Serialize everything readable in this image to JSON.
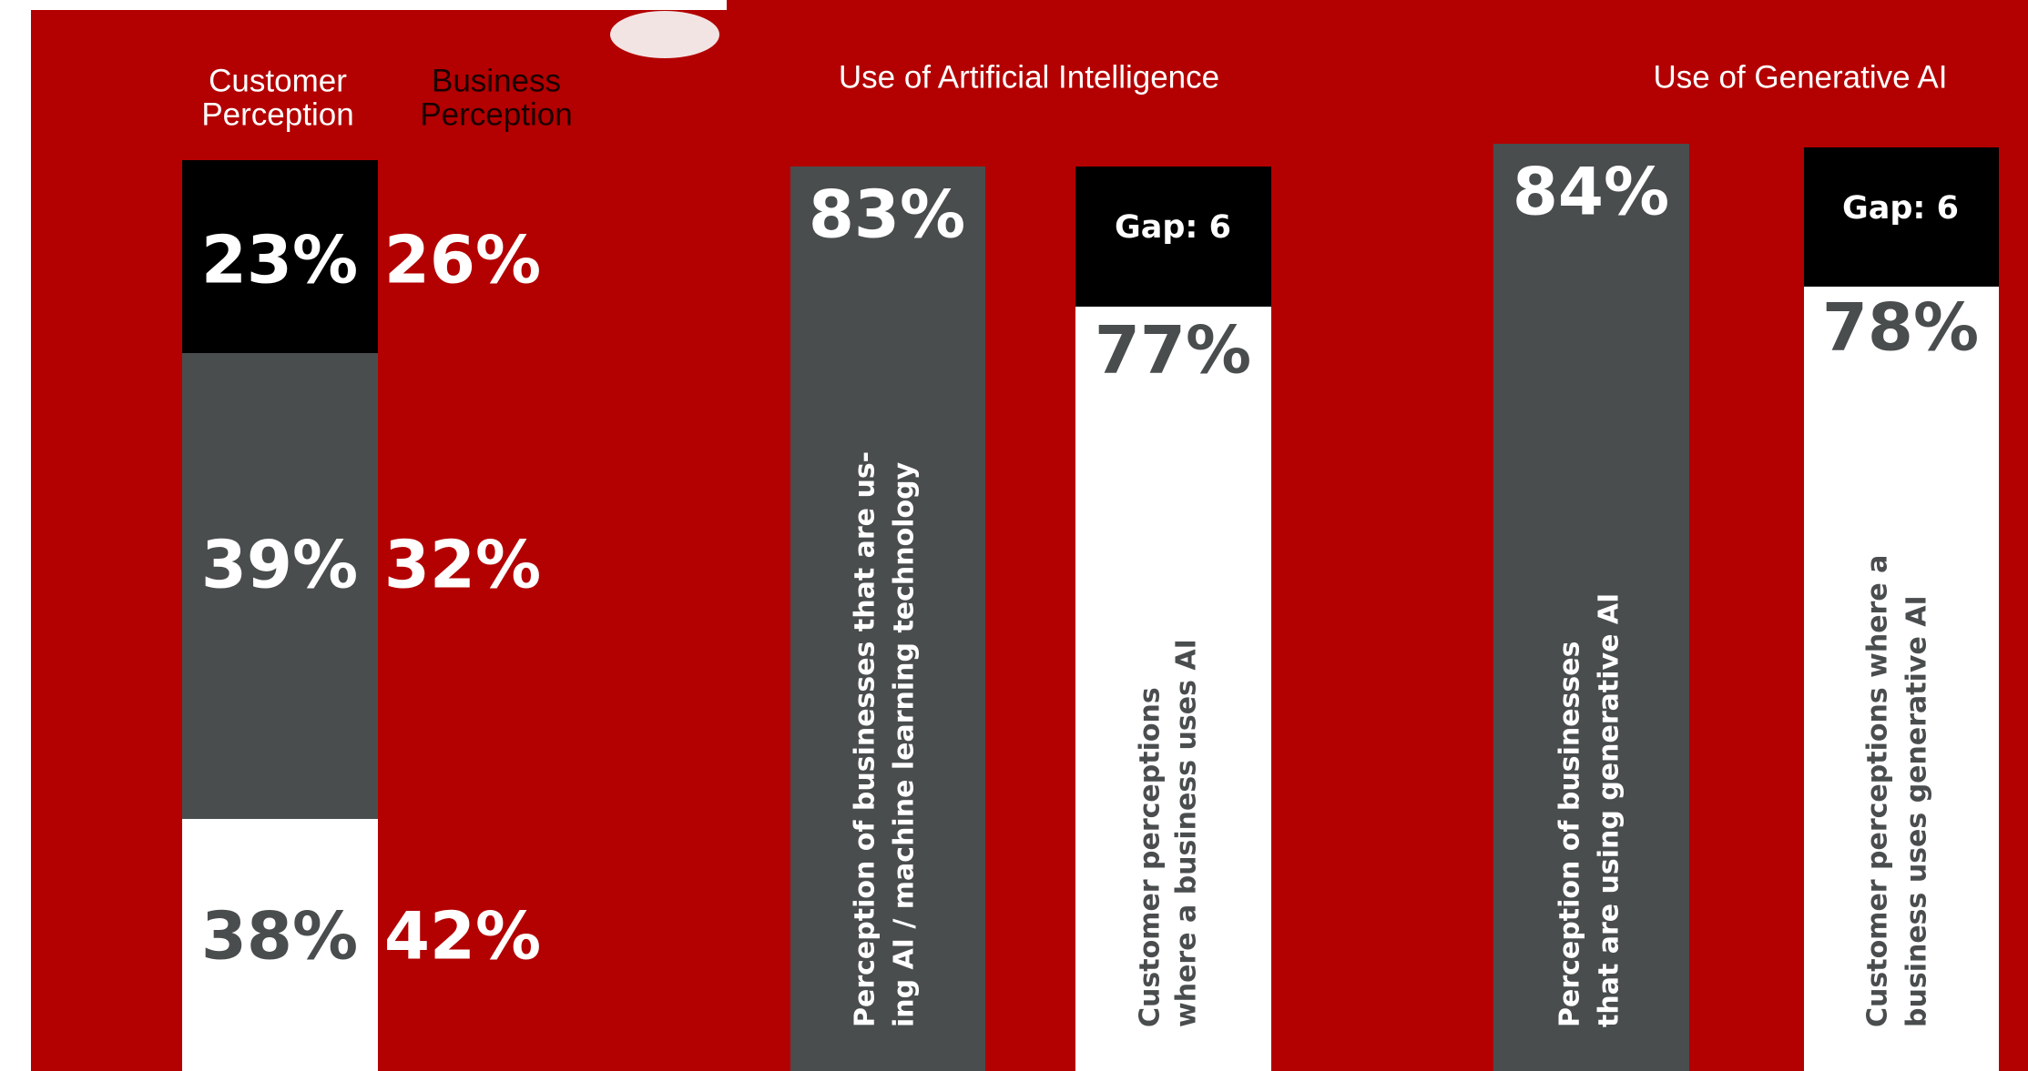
{
  "headers": {
    "customer": [
      "Customer",
      "Perception"
    ],
    "business": [
      "Business",
      "Perception"
    ]
  },
  "perception": {
    "customer": [
      "23%",
      "39%",
      "38%"
    ],
    "business": [
      "26%",
      "32%",
      "42%"
    ]
  },
  "ai": {
    "title": "Use of Artificial Intelligence",
    "business_value": "83%",
    "business_label": [
      "Perception of businesses that are us-",
      "ing AI / machine learning technology"
    ],
    "gap": "Gap: 6",
    "customer_value": "77%",
    "customer_label": [
      "Customer perceptions",
      "where a business uses AI"
    ]
  },
  "genai": {
    "title": "Use of Generative AI",
    "business_value": "84%",
    "business_label": [
      "Perception of businesses",
      "that are using generative AI"
    ],
    "gap": "Gap: 6",
    "customer_value": "78%",
    "customer_label": [
      "Customer perceptions where a",
      "business uses generative AI"
    ]
  }
}
